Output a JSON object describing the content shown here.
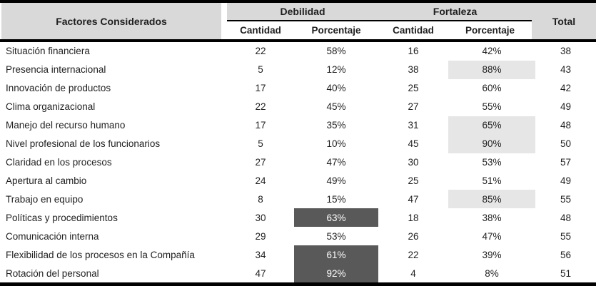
{
  "colors": {
    "header_bg": "#d9d9d9",
    "highlight_light": "#e6e6e6",
    "highlight_dark": "#595959",
    "border": "#000000",
    "text": "#1f1f1f"
  },
  "table": {
    "factors_header": "Factores Considerados",
    "group_headers": {
      "debilidad": "Debilidad",
      "fortaleza": "Fortaleza"
    },
    "subheaders": [
      "Cantidad",
      "Porcentaje",
      "Cantidad",
      "Porcentaje"
    ],
    "total_header": "Total",
    "rows": [
      {
        "factor": "Situación financiera",
        "debilidad_cantidad": "22",
        "debilidad_porcentaje": "58%",
        "fortaleza_cantidad": "16",
        "fortaleza_porcentaje": "42%",
        "total": "38",
        "debilidad_pct_highlight": false,
        "fortaleza_pct_highlight": false
      },
      {
        "factor": "Presencia internacional",
        "debilidad_cantidad": "5",
        "debilidad_porcentaje": "12%",
        "fortaleza_cantidad": "38",
        "fortaleza_porcentaje": "88%",
        "total": "43",
        "debilidad_pct_highlight": false,
        "fortaleza_pct_highlight": true
      },
      {
        "factor": "Innovación de productos",
        "debilidad_cantidad": "17",
        "debilidad_porcentaje": "40%",
        "fortaleza_cantidad": "25",
        "fortaleza_porcentaje": "60%",
        "total": "42",
        "debilidad_pct_highlight": false,
        "fortaleza_pct_highlight": false
      },
      {
        "factor": "Clima organizacional",
        "debilidad_cantidad": "22",
        "debilidad_porcentaje": "45%",
        "fortaleza_cantidad": "27",
        "fortaleza_porcentaje": "55%",
        "total": "49",
        "debilidad_pct_highlight": false,
        "fortaleza_pct_highlight": false
      },
      {
        "factor": "Manejo del recurso humano",
        "debilidad_cantidad": "17",
        "debilidad_porcentaje": "35%",
        "fortaleza_cantidad": "31",
        "fortaleza_porcentaje": "65%",
        "total": "48",
        "debilidad_pct_highlight": false,
        "fortaleza_pct_highlight": true
      },
      {
        "factor": "Nivel profesional de los funcionarios",
        "debilidad_cantidad": "5",
        "debilidad_porcentaje": "10%",
        "fortaleza_cantidad": "45",
        "fortaleza_porcentaje": "90%",
        "total": "50",
        "debilidad_pct_highlight": false,
        "fortaleza_pct_highlight": true
      },
      {
        "factor": "Claridad en los procesos",
        "debilidad_cantidad": "27",
        "debilidad_porcentaje": "47%",
        "fortaleza_cantidad": "30",
        "fortaleza_porcentaje": "53%",
        "total": "57",
        "debilidad_pct_highlight": false,
        "fortaleza_pct_highlight": false
      },
      {
        "factor": "Apertura al cambio",
        "debilidad_cantidad": "24",
        "debilidad_porcentaje": "49%",
        "fortaleza_cantidad": "25",
        "fortaleza_porcentaje": "51%",
        "total": "49",
        "debilidad_pct_highlight": false,
        "fortaleza_pct_highlight": false
      },
      {
        "factor": "Trabajo en equipo",
        "debilidad_cantidad": "8",
        "debilidad_porcentaje": "15%",
        "fortaleza_cantidad": "47",
        "fortaleza_porcentaje": "85%",
        "total": "55",
        "debilidad_pct_highlight": false,
        "fortaleza_pct_highlight": true
      },
      {
        "factor": "Políticas y procedimientos",
        "debilidad_cantidad": "30",
        "debilidad_porcentaje": "63%",
        "fortaleza_cantidad": "18",
        "fortaleza_porcentaje": "38%",
        "total": "48",
        "debilidad_pct_highlight": true,
        "fortaleza_pct_highlight": false
      },
      {
        "factor": "Comunicación interna",
        "debilidad_cantidad": "29",
        "debilidad_porcentaje": "53%",
        "fortaleza_cantidad": "26",
        "fortaleza_porcentaje": "47%",
        "total": "55",
        "debilidad_pct_highlight": false,
        "fortaleza_pct_highlight": false
      },
      {
        "factor": "Flexibilidad de los procesos en la Compañía",
        "debilidad_cantidad": "34",
        "debilidad_porcentaje": "61%",
        "fortaleza_cantidad": "22",
        "fortaleza_porcentaje": "39%",
        "total": "56",
        "debilidad_pct_highlight": true,
        "fortaleza_pct_highlight": false
      },
      {
        "factor": "Rotación del personal",
        "debilidad_cantidad": "47",
        "debilidad_porcentaje": "92%",
        "fortaleza_cantidad": "4",
        "fortaleza_porcentaje": "8%",
        "total": "51",
        "debilidad_pct_highlight": true,
        "fortaleza_pct_highlight": false
      }
    ]
  }
}
